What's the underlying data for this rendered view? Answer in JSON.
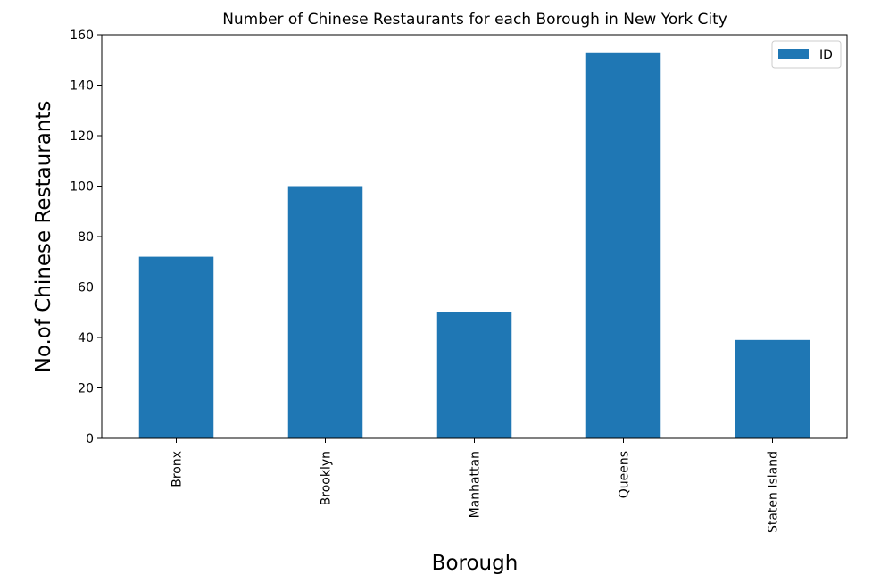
{
  "chart_data": {
    "type": "bar",
    "title": "Number of Chinese Restaurants for each Borough in New York City",
    "xlabel": "Borough",
    "ylabel": "No.of Chinese Restaurants",
    "categories": [
      "Bronx",
      "Brooklyn",
      "Manhattan",
      "Queens",
      "Staten Island"
    ],
    "series": [
      {
        "name": "ID",
        "values": [
          72,
          100,
          50,
          153,
          39
        ],
        "color": "#1f77b4"
      }
    ],
    "ylim": [
      0,
      160
    ],
    "yticks": [
      0,
      20,
      40,
      60,
      80,
      100,
      120,
      140,
      160
    ],
    "grid": false,
    "legend_position": "top-right",
    "x_tick_rotation": "vertical"
  }
}
